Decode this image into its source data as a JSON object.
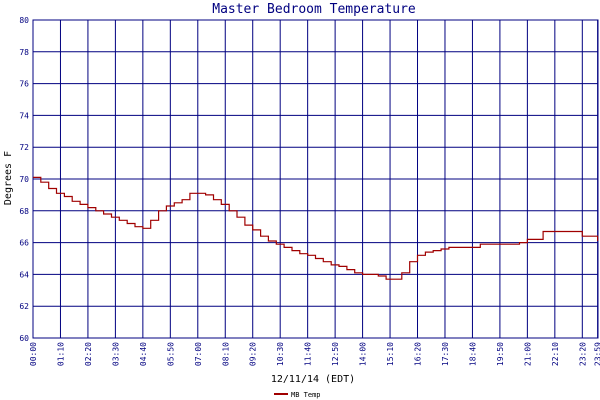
{
  "chart_data": {
    "type": "line",
    "title": "Master Bedroom Temperature",
    "xlabel": "12/11/14 (EDT)",
    "ylabel": "Degrees F",
    "ylim": [
      60,
      80
    ],
    "yticks": [
      "60",
      "62",
      "64",
      "66",
      "68",
      "70",
      "72",
      "74",
      "76",
      "78",
      "80"
    ],
    "xlim_minutes": [
      0,
      1440
    ],
    "xtick_labels": [
      "00:00",
      "01:10",
      "02:20",
      "03:30",
      "04:40",
      "05:50",
      "07:00",
      "08:10",
      "09:20",
      "10:30",
      "11:40",
      "12:50",
      "14:00",
      "15:10",
      "16:20",
      "17:30",
      "18:40",
      "19:50",
      "21:00",
      "22:10",
      "23:20",
      "23:59"
    ],
    "grid": true,
    "legend_position": "bottom",
    "series": [
      {
        "name": "MB Temp",
        "color": "#a00000",
        "x": [
          "00:00",
          "00:20",
          "00:40",
          "01:00",
          "01:20",
          "01:40",
          "02:00",
          "02:20",
          "02:40",
          "03:00",
          "03:20",
          "03:40",
          "04:00",
          "04:20",
          "04:40",
          "05:00",
          "05:20",
          "05:40",
          "06:00",
          "06:20",
          "06:40",
          "07:00",
          "07:20",
          "07:40",
          "08:00",
          "08:20",
          "08:40",
          "09:00",
          "09:20",
          "09:40",
          "10:00",
          "10:20",
          "10:40",
          "11:00",
          "11:20",
          "11:40",
          "12:00",
          "12:20",
          "12:40",
          "13:00",
          "13:20",
          "13:40",
          "14:00",
          "14:20",
          "14:40",
          "15:00",
          "15:20",
          "15:40",
          "16:00",
          "16:20",
          "16:40",
          "17:00",
          "17:20",
          "17:40",
          "18:00",
          "18:20",
          "18:40",
          "19:00",
          "19:20",
          "19:40",
          "20:00",
          "20:20",
          "20:40",
          "21:00",
          "21:20",
          "21:40",
          "22:00",
          "22:20",
          "22:40",
          "23:00",
          "23:20",
          "23:40",
          "23:59"
        ],
        "y": [
          70.1,
          69.8,
          69.4,
          69.1,
          68.9,
          68.6,
          68.4,
          68.2,
          68.0,
          67.8,
          67.6,
          67.4,
          67.2,
          67.0,
          66.9,
          67.4,
          68.0,
          68.3,
          68.5,
          68.7,
          69.1,
          69.1,
          69.0,
          68.7,
          68.4,
          68.0,
          67.6,
          67.1,
          66.8,
          66.4,
          66.1,
          65.9,
          65.7,
          65.5,
          65.3,
          65.2,
          65.0,
          64.8,
          64.6,
          64.5,
          64.3,
          64.1,
          64.0,
          64.0,
          63.9,
          63.7,
          63.7,
          64.1,
          64.8,
          65.2,
          65.4,
          65.5,
          65.6,
          65.7,
          65.7,
          65.7,
          65.7,
          65.9,
          65.9,
          65.9,
          65.9,
          65.9,
          66.0,
          66.2,
          66.2,
          66.7,
          66.7,
          66.7,
          66.7,
          66.7,
          66.4,
          66.4,
          66.1
        ]
      }
    ]
  }
}
